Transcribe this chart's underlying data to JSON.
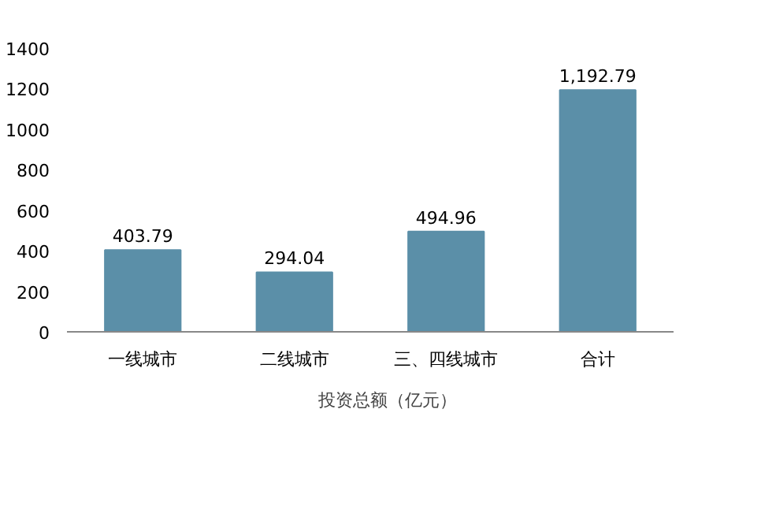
{
  "chart_data": {
    "type": "bar",
    "categories": [
      "一线城市",
      "二线城市",
      "三、四线城市",
      "合计"
    ],
    "series": [
      {
        "name": "投资总额（亿元）",
        "color": "#5b8fa8",
        "values": [
          403.79,
          294.04,
          494.96,
          1192.79
        ]
      }
    ],
    "value_labels": [
      "403.79",
      "294.04",
      "494.96",
      "1,192.79"
    ],
    "ylim": [
      0,
      1400
    ],
    "yticks": [
      0,
      200,
      400,
      600,
      800,
      1000,
      1200,
      1400
    ],
    "grid": false,
    "legend": "bottom"
  }
}
